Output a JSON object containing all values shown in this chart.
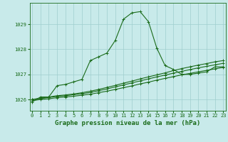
{
  "xlabel": "Graphe pression niveau de la mer (hPa)",
  "x_hours": [
    0,
    1,
    2,
    3,
    4,
    5,
    6,
    7,
    8,
    9,
    10,
    11,
    12,
    13,
    14,
    15,
    16,
    17,
    18,
    19,
    20,
    21,
    22,
    23
  ],
  "line1": [
    1025.9,
    1026.1,
    1026.1,
    1026.55,
    1026.6,
    1026.7,
    1026.8,
    1027.55,
    1027.7,
    1027.85,
    1028.35,
    1029.2,
    1029.45,
    1029.5,
    1029.1,
    1028.05,
    1027.35,
    1027.2,
    1027.0,
    1027.0,
    1027.05,
    1027.1,
    1027.3,
    1027.3
  ],
  "line2": [
    1026.0,
    1026.05,
    1026.1,
    1026.15,
    1026.18,
    1026.22,
    1026.27,
    1026.33,
    1026.4,
    1026.48,
    1026.56,
    1026.65,
    1026.73,
    1026.82,
    1026.9,
    1026.98,
    1027.06,
    1027.15,
    1027.23,
    1027.3,
    1027.37,
    1027.43,
    1027.5,
    1027.55
  ],
  "line3": [
    1026.0,
    1026.04,
    1026.08,
    1026.12,
    1026.15,
    1026.19,
    1026.23,
    1026.28,
    1026.35,
    1026.42,
    1026.5,
    1026.58,
    1026.66,
    1026.74,
    1026.82,
    1026.9,
    1026.97,
    1027.05,
    1027.12,
    1027.19,
    1027.26,
    1027.32,
    1027.38,
    1027.44
  ],
  "line4": [
    1025.95,
    1026.0,
    1026.03,
    1026.07,
    1026.1,
    1026.13,
    1026.17,
    1026.21,
    1026.27,
    1026.33,
    1026.4,
    1026.47,
    1026.54,
    1026.62,
    1026.69,
    1026.77,
    1026.84,
    1026.91,
    1026.98,
    1027.04,
    1027.1,
    1027.16,
    1027.22,
    1027.28
  ],
  "line_color": "#1a6b1a",
  "bg_color": "#c8eaea",
  "grid_color": "#9fcece",
  "ylim": [
    1025.55,
    1029.85
  ],
  "yticks": [
    1026,
    1027,
    1028,
    1029
  ],
  "xticks": [
    0,
    1,
    2,
    3,
    4,
    5,
    6,
    7,
    8,
    9,
    10,
    11,
    12,
    13,
    14,
    15,
    16,
    17,
    18,
    19,
    20,
    21,
    22,
    23
  ],
  "marker": "+",
  "markersize": 3,
  "linewidth": 0.8,
  "xlabel_fontsize": 6.5,
  "tick_fontsize": 5.0
}
